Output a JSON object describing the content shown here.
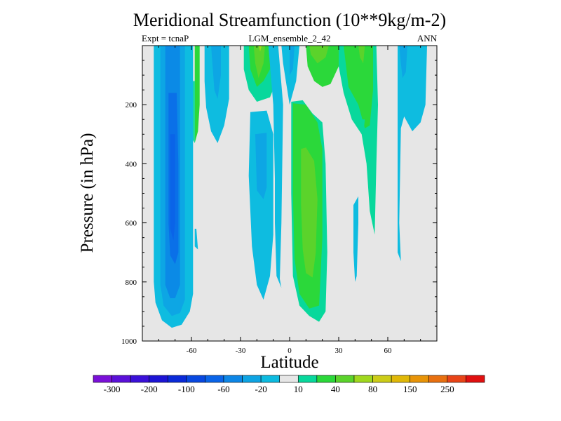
{
  "chart_data": {
    "type": "contour",
    "title": "Meridional Streamfunction (10**9kg/m-2)",
    "left_label": "Expt = tcnaP",
    "center_label": "LGM_ensemble_2_42",
    "right_label": "ANN",
    "xlabel": "Latitude",
    "ylabel": "Pressure (in hPa)",
    "xlim": [
      -90,
      90
    ],
    "ylim": [
      0,
      1000
    ],
    "x_ticks": [
      -60,
      -30,
      0,
      30,
      60
    ],
    "x_tick_labels": [
      "-60",
      "-30",
      "0",
      "30",
      "60"
    ],
    "y_ticks": [
      200,
      400,
      600,
      800,
      1000
    ],
    "y_tick_labels": [
      "200",
      "400",
      "600",
      "800",
      "1000"
    ],
    "colorbar": {
      "colors": [
        "#7a10d8",
        "#5a10d8",
        "#3a10d8",
        "#1c14d4",
        "#0a2ad8",
        "#0848e0",
        "#0a64e8",
        "#0d86e6",
        "#0ea4e3",
        "#0dbbe0",
        "#e6e6e6",
        "#08d89c",
        "#2bd83a",
        "#5bd32b",
        "#a0d81e",
        "#cccc18",
        "#e0b808",
        "#e89408",
        "#e87010",
        "#e84418",
        "#e01010"
      ],
      "labels": [
        "-300",
        "-200",
        "-100",
        "-60",
        "-20",
        "10",
        "40",
        "80",
        "150",
        "250"
      ]
    },
    "regions": [
      {
        "name": "southern-cell",
        "color": "#0ebce0",
        "pts": [
          [
            -83,
            0
          ],
          [
            -59,
            0
          ],
          [
            -59,
            840
          ],
          [
            -61,
            900
          ],
          [
            -66,
            945
          ],
          [
            -72,
            955
          ],
          [
            -78,
            930
          ],
          [
            -82,
            870
          ],
          [
            -83,
            800
          ]
        ]
      },
      {
        "name": "southern-cell",
        "color": "#0da6e4",
        "pts": [
          [
            -79,
            0
          ],
          [
            -64,
            0
          ],
          [
            -64,
            860
          ],
          [
            -67,
            905
          ],
          [
            -72,
            915
          ],
          [
            -77,
            880
          ],
          [
            -79,
            810
          ]
        ]
      },
      {
        "name": "southern-cell",
        "color": "#0b8ae6",
        "pts": [
          [
            -76,
            0
          ],
          [
            -67,
            0
          ],
          [
            -67,
            810
          ],
          [
            -70,
            855
          ],
          [
            -73,
            855
          ],
          [
            -76,
            810
          ]
        ]
      },
      {
        "name": "southern-cell",
        "color": "#0a70e8",
        "pts": [
          [
            -74,
            160
          ],
          [
            -69,
            160
          ],
          [
            -68,
            400
          ],
          [
            -68,
            700
          ],
          [
            -70,
            740
          ],
          [
            -73,
            710
          ],
          [
            -74,
            600
          ],
          [
            -74,
            300
          ]
        ]
      },
      {
        "name": "southern-cell",
        "color": "#0a64e8",
        "pts": [
          [
            -73,
            300
          ],
          [
            -70,
            300
          ],
          [
            -70,
            600
          ],
          [
            -71,
            660
          ],
          [
            -73,
            620
          ]
        ]
      },
      {
        "name": "southern-cell",
        "color": "#0ebce0",
        "pts": [
          [
            -58,
            620
          ],
          [
            -57,
            620
          ],
          [
            -56,
            690
          ],
          [
            -58,
            680
          ]
        ]
      },
      {
        "name": "thin-green-band",
        "color": "#2bd83a",
        "pts": [
          [
            -58,
            0
          ],
          [
            -55,
            0
          ],
          [
            -55,
            200
          ],
          [
            -56,
            290
          ],
          [
            -58,
            330
          ]
        ]
      },
      {
        "name": "thin-green-band",
        "color": "#08d89c",
        "pts": [
          [
            -59,
            120
          ],
          [
            -58,
            120
          ],
          [
            -58,
            330
          ],
          [
            -59,
            320
          ]
        ]
      },
      {
        "name": "mid-cell",
        "color": "#0ebce0",
        "pts": [
          [
            -52,
            0
          ],
          [
            -37,
            0
          ],
          [
            -37,
            180
          ],
          [
            -40,
            270
          ],
          [
            -44,
            330
          ],
          [
            -48,
            290
          ],
          [
            -51,
            210
          ],
          [
            -52,
            120
          ]
        ]
      },
      {
        "name": "mid-cell",
        "color": "#0da6e4",
        "pts": [
          [
            -48,
            0
          ],
          [
            -42,
            0
          ],
          [
            -42,
            100
          ],
          [
            -44,
            180
          ],
          [
            -46,
            150
          ]
        ]
      },
      {
        "name": "upper-ferrel",
        "color": "#08d89c",
        "pts": [
          [
            -28,
            0
          ],
          [
            -8,
            0
          ],
          [
            -8,
            120
          ],
          [
            -12,
            175
          ],
          [
            -20,
            190
          ],
          [
            -25,
            150
          ],
          [
            -28,
            80
          ]
        ]
      },
      {
        "name": "upper-ferrel",
        "color": "#2bd83a",
        "pts": [
          [
            -25,
            0
          ],
          [
            -11,
            0
          ],
          [
            -12,
            80
          ],
          [
            -16,
            120
          ],
          [
            -20,
            140
          ],
          [
            -24,
            80
          ]
        ]
      },
      {
        "name": "upper-ferrel",
        "color": "#5bd32b",
        "pts": [
          [
            -22,
            0
          ],
          [
            -15,
            0
          ],
          [
            -16,
            60
          ],
          [
            -19,
            110
          ],
          [
            -21,
            60
          ]
        ]
      },
      {
        "name": "upper-ferrel",
        "color": "#a0d81e",
        "pts": [
          [
            -19,
            0
          ],
          [
            -17,
            0
          ],
          [
            -18,
            20
          ]
        ]
      },
      {
        "name": "lower-southern-cell",
        "color": "#0ebce0",
        "pts": [
          [
            -24,
            225
          ],
          [
            -14,
            220
          ],
          [
            -10,
            300
          ],
          [
            -10,
            640
          ],
          [
            -12,
            780
          ],
          [
            -16,
            860
          ],
          [
            -20,
            810
          ],
          [
            -23,
            680
          ],
          [
            -25,
            440
          ]
        ]
      },
      {
        "name": "lower-southern-cell",
        "color": "#0da6e4",
        "pts": [
          [
            -21,
            300
          ],
          [
            -14,
            295
          ],
          [
            -14,
            480
          ],
          [
            -16,
            520
          ],
          [
            -20,
            490
          ]
        ]
      },
      {
        "name": "equatorial-blue",
        "color": "#0ebce0",
        "pts": [
          [
            -13,
            0
          ],
          [
            -7,
            0
          ],
          [
            -4,
            200
          ],
          [
            -5,
            600
          ],
          [
            -6,
            790
          ],
          [
            -5,
            820
          ],
          [
            -8,
            780
          ],
          [
            -9,
            600
          ],
          [
            -9,
            450
          ],
          [
            -10,
            200
          ]
        ]
      },
      {
        "name": "equatorial-blue",
        "color": "#0ebce0",
        "pts": [
          [
            -5,
            0
          ],
          [
            6,
            0
          ],
          [
            4,
            120
          ],
          [
            0,
            200
          ],
          [
            -2,
            130
          ],
          [
            -4,
            60
          ]
        ]
      },
      {
        "name": "equatorial-blue",
        "color": "#0da6e4",
        "pts": [
          [
            0,
            0
          ],
          [
            3,
            0
          ],
          [
            2,
            80
          ],
          [
            0,
            100
          ]
        ]
      },
      {
        "name": "northern-hadley",
        "color": "#08d89c",
        "pts": [
          [
            1,
            190
          ],
          [
            8,
            185
          ],
          [
            14,
            230
          ],
          [
            20,
            260
          ],
          [
            22,
            400
          ],
          [
            23,
            700
          ],
          [
            22,
            900
          ],
          [
            18,
            935
          ],
          [
            12,
            915
          ],
          [
            6,
            880
          ],
          [
            2,
            780
          ],
          [
            1,
            500
          ]
        ]
      },
      {
        "name": "northern-hadley",
        "color": "#2bd83a",
        "pts": [
          [
            2,
            195
          ],
          [
            10,
            200
          ],
          [
            17,
            260
          ],
          [
            20,
            350
          ],
          [
            20,
            650
          ],
          [
            18,
            880
          ],
          [
            12,
            890
          ],
          [
            6,
            840
          ],
          [
            3,
            720
          ],
          [
            2,
            500
          ]
        ]
      },
      {
        "name": "northern-hadley",
        "color": "#5bd32b",
        "pts": [
          [
            7,
            350
          ],
          [
            10,
            345
          ],
          [
            15,
            390
          ],
          [
            17,
            520
          ],
          [
            16,
            700
          ],
          [
            14,
            785
          ],
          [
            10,
            770
          ],
          [
            8,
            690
          ],
          [
            7,
            540
          ]
        ]
      },
      {
        "name": "upper-north-green",
        "color": "#2bd83a",
        "pts": [
          [
            10,
            0
          ],
          [
            32,
            0
          ],
          [
            30,
            70
          ],
          [
            25,
            130
          ],
          [
            20,
            140
          ],
          [
            15,
            120
          ],
          [
            11,
            70
          ]
        ]
      },
      {
        "name": "upper-north-green",
        "color": "#5bd32b",
        "pts": [
          [
            12,
            0
          ],
          [
            24,
            0
          ],
          [
            22,
            40
          ],
          [
            17,
            60
          ],
          [
            13,
            30
          ]
        ]
      },
      {
        "name": "north-band",
        "color": "#08d89c",
        "pts": [
          [
            30,
            0
          ],
          [
            53,
            0
          ],
          [
            54,
            200
          ],
          [
            53,
            400
          ],
          [
            52,
            640
          ],
          [
            49,
            560
          ],
          [
            47,
            400
          ],
          [
            44,
            300
          ],
          [
            38,
            250
          ],
          [
            33,
            160
          ],
          [
            30,
            70
          ]
        ]
      },
      {
        "name": "north-band",
        "color": "#2bd83a",
        "pts": [
          [
            33,
            0
          ],
          [
            51,
            0
          ],
          [
            51,
            150
          ],
          [
            49,
            270
          ],
          [
            46,
            280
          ],
          [
            42,
            200
          ],
          [
            36,
            140
          ]
        ]
      },
      {
        "name": "north-band",
        "color": "#5bd32b",
        "pts": [
          [
            42,
            0
          ],
          [
            46,
            0
          ],
          [
            45,
            60
          ],
          [
            43,
            40
          ]
        ]
      },
      {
        "name": "north-band",
        "color": "#08d89c",
        "pts": [
          [
            43,
            250
          ],
          [
            46,
            250
          ],
          [
            45,
            300
          ],
          [
            43,
            280
          ]
        ]
      },
      {
        "name": "north-blue",
        "color": "#0ebce0",
        "pts": [
          [
            39,
            540
          ],
          [
            42,
            510
          ],
          [
            42,
            600
          ],
          [
            41,
            780
          ],
          [
            40,
            800
          ],
          [
            39,
            700
          ]
        ]
      },
      {
        "name": "polar-cell",
        "color": "#0ebce0",
        "pts": [
          [
            66,
            0
          ],
          [
            84,
            0
          ],
          [
            83,
            200
          ],
          [
            80,
            260
          ],
          [
            75,
            290
          ],
          [
            70,
            240
          ],
          [
            68,
            280
          ],
          [
            67,
            600
          ],
          [
            68,
            730
          ],
          [
            66,
            700
          ],
          [
            66,
            400
          ]
        ]
      },
      {
        "name": "polar-cell",
        "color": "#0da6e4",
        "pts": [
          [
            67,
            0
          ],
          [
            72,
            0
          ],
          [
            71,
            90
          ],
          [
            69,
            110
          ],
          [
            68,
            60
          ]
        ]
      }
    ]
  }
}
